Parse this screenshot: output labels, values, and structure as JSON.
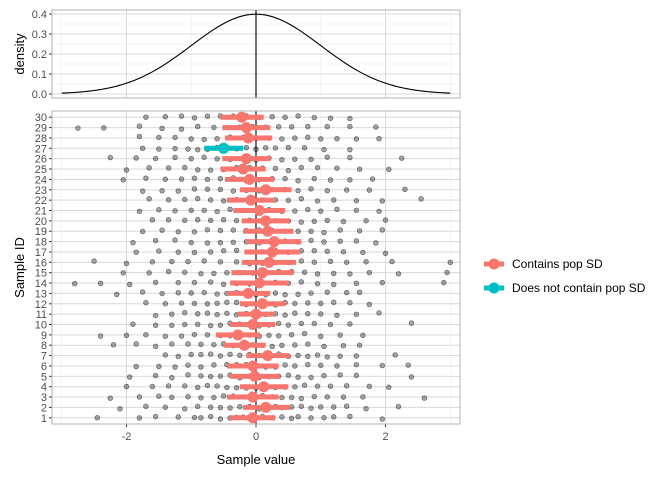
{
  "colors": {
    "contains": "#F8766D",
    "not_contains": "#00BFC4",
    "points": "#000000",
    "grid_major": "#d9d9d9",
    "grid_minor": "#ebebeb",
    "panel_border": "#b3b3b3",
    "axis_text": "#4d4d4d"
  },
  "chart_data": [
    {
      "type": "line",
      "ylabel": "density",
      "xlim": [
        -3.15,
        3.15
      ],
      "ylim": [
        -0.02,
        0.42
      ],
      "yticks": [
        0.0,
        0.1,
        0.2,
        0.3,
        0.4
      ],
      "ytick_labels": [
        "0.0",
        "0.1",
        "0.2",
        "0.3",
        "0.4"
      ],
      "curve": "standard normal density",
      "x": [
        -3.0,
        -2.75,
        -2.5,
        -2.25,
        -2.0,
        -1.75,
        -1.5,
        -1.25,
        -1.0,
        -0.75,
        -0.5,
        -0.25,
        0.0,
        0.25,
        0.5,
        0.75,
        1.0,
        1.25,
        1.5,
        1.75,
        2.0,
        2.25,
        2.5,
        2.75,
        3.0
      ],
      "y": [
        0.004,
        0.009,
        0.018,
        0.032,
        0.054,
        0.086,
        0.13,
        0.183,
        0.242,
        0.301,
        0.352,
        0.387,
        0.399,
        0.387,
        0.352,
        0.301,
        0.242,
        0.183,
        0.13,
        0.086,
        0.054,
        0.032,
        0.018,
        0.009,
        0.004
      ],
      "vline_x": 0,
      "grid": true
    },
    {
      "type": "scatter",
      "xlabel": "Sample value",
      "ylabel": "Sample ID",
      "xlim": [
        -3.15,
        3.15
      ],
      "ylim": [
        0.4,
        30.6
      ],
      "xticks": [
        -2,
        0,
        2
      ],
      "xtick_labels": [
        "-2",
        "0",
        "2"
      ],
      "sample_ids": [
        "1",
        "2",
        "3",
        "4",
        "5",
        "6",
        "7",
        "8",
        "9",
        "10",
        "11",
        "12",
        "13",
        "14",
        "15",
        "16",
        "17",
        "18",
        "19",
        "20",
        "21",
        "22",
        "23",
        "24",
        "25",
        "26",
        "27",
        "28",
        "29",
        "30"
      ],
      "vline_x": 0,
      "grid": true,
      "legend": {
        "placement": "right",
        "entries": [
          {
            "key": "contains",
            "label": "Contains pop SD"
          },
          {
            "key": "not_contains",
            "label": "Does not contain pop SD"
          }
        ]
      },
      "intervals": [
        {
          "id": 1,
          "mean": -0.05,
          "lo": -0.4,
          "hi": 0.3,
          "group": "contains"
        },
        {
          "id": 2,
          "mean": 0.15,
          "lo": -0.2,
          "hi": 0.52,
          "group": "contains"
        },
        {
          "id": 3,
          "mean": -0.05,
          "lo": -0.45,
          "hi": 0.35,
          "group": "contains"
        },
        {
          "id": 4,
          "mean": 0.12,
          "lo": -0.25,
          "hi": 0.5,
          "group": "contains"
        },
        {
          "id": 5,
          "mean": -0.02,
          "lo": -0.4,
          "hi": 0.36,
          "group": "contains"
        },
        {
          "id": 6,
          "mean": -0.05,
          "lo": -0.45,
          "hi": 0.35,
          "group": "contains"
        },
        {
          "id": 7,
          "mean": 0.18,
          "lo": -0.15,
          "hi": 0.52,
          "group": "contains"
        },
        {
          "id": 8,
          "mean": -0.18,
          "lo": -0.5,
          "hi": 0.15,
          "group": "contains"
        },
        {
          "id": 9,
          "mean": -0.28,
          "lo": -0.62,
          "hi": 0.06,
          "group": "contains"
        },
        {
          "id": 10,
          "mean": -0.05,
          "lo": -0.4,
          "hi": 0.3,
          "group": "contains"
        },
        {
          "id": 11,
          "mean": 0.0,
          "lo": -0.28,
          "hi": 0.28,
          "group": "contains"
        },
        {
          "id": 12,
          "mean": 0.1,
          "lo": -0.25,
          "hi": 0.45,
          "group": "contains"
        },
        {
          "id": 13,
          "mean": -0.12,
          "lo": -0.45,
          "hi": 0.22,
          "group": "contains"
        },
        {
          "id": 14,
          "mean": 0.05,
          "lo": -0.4,
          "hi": 0.5,
          "group": "contains"
        },
        {
          "id": 15,
          "mean": 0.1,
          "lo": -0.38,
          "hi": 0.58,
          "group": "contains"
        },
        {
          "id": 16,
          "mean": 0.2,
          "lo": -0.22,
          "hi": 0.62,
          "group": "contains"
        },
        {
          "id": 17,
          "mean": 0.25,
          "lo": -0.18,
          "hi": 0.68,
          "group": "contains"
        },
        {
          "id": 18,
          "mean": 0.28,
          "lo": -0.15,
          "hi": 0.7,
          "group": "contains"
        },
        {
          "id": 19,
          "mean": 0.18,
          "lo": -0.2,
          "hi": 0.58,
          "group": "contains"
        },
        {
          "id": 20,
          "mean": 0.15,
          "lo": -0.22,
          "hi": 0.52,
          "group": "contains"
        },
        {
          "id": 21,
          "mean": 0.05,
          "lo": -0.35,
          "hi": 0.45,
          "group": "contains"
        },
        {
          "id": 22,
          "mean": -0.08,
          "lo": -0.45,
          "hi": 0.28,
          "group": "contains"
        },
        {
          "id": 23,
          "mean": 0.15,
          "lo": -0.25,
          "hi": 0.55,
          "group": "contains"
        },
        {
          "id": 24,
          "mean": -0.1,
          "lo": -0.48,
          "hi": 0.28,
          "group": "contains"
        },
        {
          "id": 25,
          "mean": -0.2,
          "lo": -0.55,
          "hi": 0.15,
          "group": "contains"
        },
        {
          "id": 26,
          "mean": -0.15,
          "lo": -0.52,
          "hi": 0.22,
          "group": "contains"
        },
        {
          "id": 27,
          "mean": -0.5,
          "lo": -0.8,
          "hi": -0.2,
          "group": "not_contains"
        },
        {
          "id": 28,
          "mean": -0.12,
          "lo": -0.48,
          "hi": 0.25,
          "group": "contains"
        },
        {
          "id": 29,
          "mean": -0.15,
          "lo": -0.52,
          "hi": 0.22,
          "group": "contains"
        },
        {
          "id": 30,
          "mean": -0.22,
          "lo": -0.55,
          "hi": 0.12,
          "group": "contains"
        }
      ],
      "samples": [
        {
          "id": 1,
          "values": [
            -2.45,
            -1.8,
            -1.55,
            -1.2,
            -0.95,
            -0.85,
            -0.7,
            -0.55,
            -0.4,
            -0.3,
            -0.2,
            -0.1,
            0.0,
            0.1,
            0.25,
            0.4,
            0.55,
            0.65,
            0.85,
            1.05,
            1.2,
            1.45,
            1.95
          ]
        },
        {
          "id": 2,
          "values": [
            -2.1,
            -1.7,
            -1.4,
            -1.1,
            -0.9,
            -0.7,
            -0.55,
            -0.4,
            -0.25,
            -0.1,
            0.05,
            0.15,
            0.3,
            0.4,
            0.55,
            0.7,
            0.85,
            1.0,
            1.2,
            1.4,
            1.7,
            2.2
          ]
        },
        {
          "id": 3,
          "values": [
            -2.25,
            -1.8,
            -1.5,
            -1.3,
            -1.05,
            -0.85,
            -0.65,
            -0.5,
            -0.35,
            -0.2,
            -0.05,
            0.1,
            0.25,
            0.4,
            0.55,
            0.7,
            0.9,
            1.1,
            1.35,
            1.65,
            2.6
          ]
        },
        {
          "id": 4,
          "values": [
            -2.0,
            -1.6,
            -1.35,
            -1.1,
            -0.9,
            -0.75,
            -0.6,
            -0.45,
            -0.3,
            -0.15,
            0.0,
            0.15,
            0.3,
            0.45,
            0.6,
            0.75,
            0.95,
            1.15,
            1.4,
            1.75,
            2.05
          ]
        },
        {
          "id": 5,
          "values": [
            -1.95,
            -1.55,
            -1.3,
            -1.05,
            -0.85,
            -0.7,
            -0.55,
            -0.4,
            -0.25,
            -0.1,
            0.05,
            0.2,
            0.35,
            0.5,
            0.65,
            0.85,
            1.05,
            1.3,
            1.55,
            2.4
          ]
        },
        {
          "id": 6,
          "values": [
            -1.85,
            -1.5,
            -1.25,
            -1.05,
            -0.85,
            -0.65,
            -0.45,
            -0.3,
            -0.15,
            0.0,
            0.15,
            0.3,
            0.45,
            0.6,
            0.8,
            1.0,
            1.25,
            1.55,
            1.95,
            2.35
          ]
        },
        {
          "id": 7,
          "values": [
            -1.4,
            -1.2,
            -1.0,
            -0.85,
            -0.7,
            -0.55,
            -0.4,
            -0.25,
            -0.1,
            0.05,
            0.2,
            0.35,
            0.5,
            0.65,
            0.8,
            0.95,
            1.1,
            1.3,
            1.55,
            2.15
          ]
        },
        {
          "id": 8,
          "values": [
            -2.2,
            -1.85,
            -1.55,
            -1.3,
            -1.05,
            -0.85,
            -0.65,
            -0.5,
            -0.35,
            -0.2,
            -0.05,
            0.1,
            0.25,
            0.4,
            0.6,
            0.8,
            1.05,
            1.35,
            1.6
          ]
        },
        {
          "id": 9,
          "values": [
            -2.4,
            -2.0,
            -1.7,
            -1.4,
            -1.15,
            -0.95,
            -0.75,
            -0.55,
            -0.4,
            -0.25,
            -0.1,
            0.05,
            0.2,
            0.35,
            0.55,
            0.75,
            1.0,
            1.3,
            1.65
          ]
        },
        {
          "id": 10,
          "values": [
            -1.9,
            -1.55,
            -1.3,
            -1.1,
            -0.9,
            -0.7,
            -0.55,
            -0.4,
            -0.25,
            -0.1,
            0.05,
            0.2,
            0.35,
            0.5,
            0.7,
            0.9,
            1.15,
            1.45,
            2.4
          ]
        },
        {
          "id": 11,
          "values": [
            -1.55,
            -1.3,
            -1.1,
            -0.9,
            -0.75,
            -0.6,
            -0.45,
            -0.3,
            -0.15,
            0.0,
            0.15,
            0.3,
            0.45,
            0.6,
            0.8,
            1.0,
            1.25,
            1.55,
            1.9
          ]
        },
        {
          "id": 12,
          "values": [
            -1.7,
            -1.4,
            -1.15,
            -0.95,
            -0.75,
            -0.6,
            -0.45,
            -0.3,
            -0.15,
            0.0,
            0.15,
            0.3,
            0.45,
            0.6,
            0.8,
            1.0,
            1.2,
            1.45,
            1.75
          ]
        },
        {
          "id": 13,
          "values": [
            -2.15,
            -1.75,
            -1.45,
            -1.2,
            -1.0,
            -0.8,
            -0.6,
            -0.45,
            -0.3,
            -0.15,
            0.0,
            0.15,
            0.3,
            0.45,
            0.65,
            0.85,
            1.1,
            1.4,
            1.6
          ]
        },
        {
          "id": 14,
          "values": [
            -2.8,
            -2.4,
            -1.95,
            -1.55,
            -1.2,
            -0.95,
            -0.7,
            -0.5,
            -0.3,
            -0.1,
            0.1,
            0.3,
            0.5,
            0.7,
            0.95,
            1.2,
            1.55,
            1.95,
            2.9
          ]
        },
        {
          "id": 15,
          "values": [
            -2.05,
            -1.65,
            -1.35,
            -1.1,
            -0.85,
            -0.65,
            -0.45,
            -0.25,
            -0.05,
            0.15,
            0.35,
            0.55,
            0.75,
            0.95,
            1.2,
            1.45,
            1.75,
            2.2,
            2.95
          ]
        },
        {
          "id": 16,
          "values": [
            -2.5,
            -2.0,
            -1.6,
            -1.3,
            -1.05,
            -0.8,
            -0.55,
            -0.3,
            -0.1,
            0.1,
            0.3,
            0.5,
            0.7,
            0.9,
            1.15,
            1.4,
            1.7,
            2.1,
            3.0
          ]
        },
        {
          "id": 17,
          "values": [
            -1.85,
            -1.5,
            -1.2,
            -0.95,
            -0.7,
            -0.5,
            -0.3,
            -0.1,
            0.1,
            0.3,
            0.5,
            0.7,
            0.9,
            1.1,
            1.35,
            1.65,
            2.0
          ]
        },
        {
          "id": 18,
          "values": [
            -1.9,
            -1.55,
            -1.25,
            -1.0,
            -0.75,
            -0.55,
            -0.35,
            -0.15,
            0.05,
            0.25,
            0.45,
            0.65,
            0.85,
            1.05,
            1.3,
            1.55,
            1.85
          ]
        },
        {
          "id": 19,
          "values": [
            -1.75,
            -1.45,
            -1.2,
            -0.95,
            -0.75,
            -0.55,
            -0.35,
            -0.15,
            0.05,
            0.25,
            0.45,
            0.65,
            0.85,
            1.05,
            1.3,
            1.6,
            1.95
          ]
        },
        {
          "id": 20,
          "values": [
            -1.6,
            -1.35,
            -1.1,
            -0.9,
            -0.7,
            -0.5,
            -0.3,
            -0.1,
            0.1,
            0.3,
            0.5,
            0.7,
            0.9,
            1.1,
            1.35,
            1.7,
            2.0
          ]
        },
        {
          "id": 21,
          "values": [
            -1.8,
            -1.5,
            -1.25,
            -1.0,
            -0.8,
            -0.6,
            -0.4,
            -0.2,
            0.0,
            0.2,
            0.4,
            0.6,
            0.8,
            1.0,
            1.25,
            1.55,
            1.9
          ]
        },
        {
          "id": 22,
          "values": [
            -1.65,
            -1.35,
            -1.1,
            -0.9,
            -0.7,
            -0.5,
            -0.3,
            -0.1,
            0.1,
            0.3,
            0.5,
            0.7,
            0.95,
            1.2,
            1.55,
            1.95,
            2.55
          ]
        },
        {
          "id": 23,
          "values": [
            -1.75,
            -1.45,
            -1.2,
            -0.95,
            -0.75,
            -0.55,
            -0.35,
            -0.15,
            0.05,
            0.25,
            0.45,
            0.65,
            0.85,
            1.1,
            1.4,
            1.75,
            2.3
          ]
        },
        {
          "id": 24,
          "values": [
            -2.05,
            -1.7,
            -1.4,
            -1.15,
            -0.95,
            -0.75,
            -0.55,
            -0.35,
            -0.15,
            0.05,
            0.25,
            0.45,
            0.65,
            0.9,
            1.15,
            1.45,
            1.8
          ]
        },
        {
          "id": 25,
          "values": [
            -2.0,
            -1.65,
            -1.35,
            -1.1,
            -0.9,
            -0.7,
            -0.5,
            -0.3,
            -0.1,
            0.1,
            0.3,
            0.5,
            0.7,
            0.95,
            1.25,
            1.6,
            2.05
          ]
        },
        {
          "id": 26,
          "values": [
            -2.25,
            -1.85,
            -1.55,
            -1.25,
            -1.0,
            -0.8,
            -0.6,
            -0.4,
            -0.2,
            0.0,
            0.2,
            0.4,
            0.6,
            0.85,
            1.1,
            1.45,
            2.25
          ]
        },
        {
          "id": 27,
          "values": [
            -1.75,
            -1.5,
            -1.25,
            -1.05,
            -0.9,
            -0.75,
            -0.6,
            -0.45,
            -0.3,
            -0.15,
            0.0,
            0.15,
            0.3,
            0.5,
            0.75,
            1.05,
            1.45
          ]
        },
        {
          "id": 28,
          "values": [
            -1.8,
            -1.5,
            -1.25,
            -1.0,
            -0.8,
            -0.6,
            -0.4,
            -0.2,
            0.0,
            0.2,
            0.4,
            0.6,
            0.8,
            1.0,
            1.25,
            1.55,
            1.9
          ]
        },
        {
          "id": 29,
          "values": [
            -2.75,
            -2.35,
            -1.8,
            -1.45,
            -1.15,
            -0.9,
            -0.65,
            -0.45,
            -0.25,
            -0.05,
            0.15,
            0.35,
            0.55,
            0.8,
            1.1,
            1.45,
            1.85
          ]
        },
        {
          "id": 30,
          "values": [
            -1.7,
            -1.4,
            -1.15,
            -0.95,
            -0.75,
            -0.55,
            -0.35,
            -0.15,
            0.05,
            0.25,
            0.45,
            0.65,
            0.9,
            1.15,
            1.45
          ]
        }
      ]
    }
  ]
}
